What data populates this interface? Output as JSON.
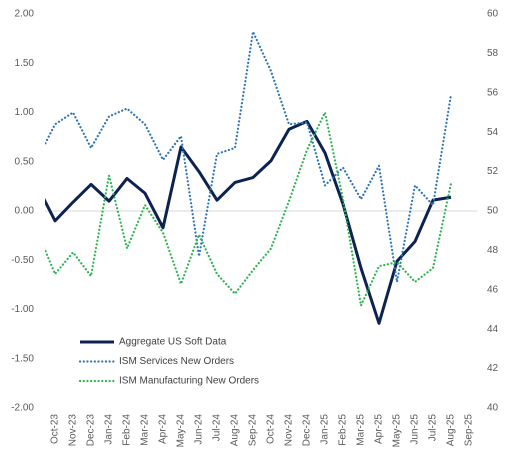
{
  "chart_data": {
    "type": "line",
    "categories": [
      null,
      "Oct-23",
      "Nov-23",
      "Dec-23",
      "Jan-24",
      "Feb-24",
      "Mar-24",
      "Apr-24",
      "May-24",
      "Jun-24",
      "Jul-24",
      "Aug-24",
      "Sep-24",
      "Oct-24",
      "Nov-24",
      "Dec-24",
      "Jan-25",
      "Feb-25",
      "Mar-25",
      "Apr-25",
      "May-25",
      "Jun-25",
      "Jul-25",
      "Aug-25",
      "Sep-25"
    ],
    "series": [
      {
        "name": "Aggregate US Soft Data",
        "color": "#0c2352",
        "style": "solid",
        "values": [
          0.26,
          -0.1,
          0.09,
          0.27,
          0.1,
          0.33,
          0.18,
          -0.17,
          0.65,
          0.4,
          0.11,
          0.29,
          0.34,
          0.51,
          0.83,
          0.91,
          0.59,
          0.07,
          -0.58,
          -1.14,
          -0.51,
          -0.31,
          0.11,
          0.14,
          null
        ]
      },
      {
        "name": "ISM Services New Orders",
        "color": "#2e75b6",
        "style": "dotted",
        "axis": "y2",
        "values": [
          52.6,
          54.4,
          55.0,
          53.2,
          54.8,
          55.2,
          54.4,
          52.6,
          53.8,
          47.7,
          52.9,
          53.2,
          59.1,
          57.1,
          54.4,
          54.5,
          51.3,
          52.2,
          50.6,
          52.3,
          46.4,
          51.3,
          50.3,
          55.9,
          null
        ]
      },
      {
        "name": "ISM Manufacturing New Orders",
        "color": "#2fb350",
        "style": "dotted",
        "axis": "y2",
        "values": [
          49.0,
          46.8,
          47.9,
          46.7,
          51.8,
          48.1,
          50.3,
          48.9,
          46.3,
          48.8,
          46.8,
          45.8,
          47.0,
          48.1,
          50.5,
          53.1,
          55.0,
          50.6,
          45.2,
          47.2,
          47.4,
          46.4,
          47.1,
          51.4,
          null
        ]
      }
    ],
    "ylim": [
      -2,
      2
    ],
    "yticks": [
      {
        "value": -2,
        "label": "-2.00"
      },
      {
        "value": -1.5,
        "label": "-1.50"
      },
      {
        "value": -1,
        "label": "-1.00"
      },
      {
        "value": -0.5,
        "label": "-0.50"
      },
      {
        "value": 0,
        "label": "0.00"
      },
      {
        "value": 0.5,
        "label": "0.50"
      },
      {
        "value": 1,
        "label": "1.00"
      },
      {
        "value": 1.5,
        "label": "1.50"
      },
      {
        "value": 2,
        "label": "2.00"
      }
    ],
    "y2lim": [
      40,
      60
    ],
    "y2ticks": [
      40,
      42,
      44,
      46,
      48,
      50,
      52,
      54,
      56,
      58,
      60
    ],
    "zero_line": true,
    "legend": "lower-left"
  }
}
